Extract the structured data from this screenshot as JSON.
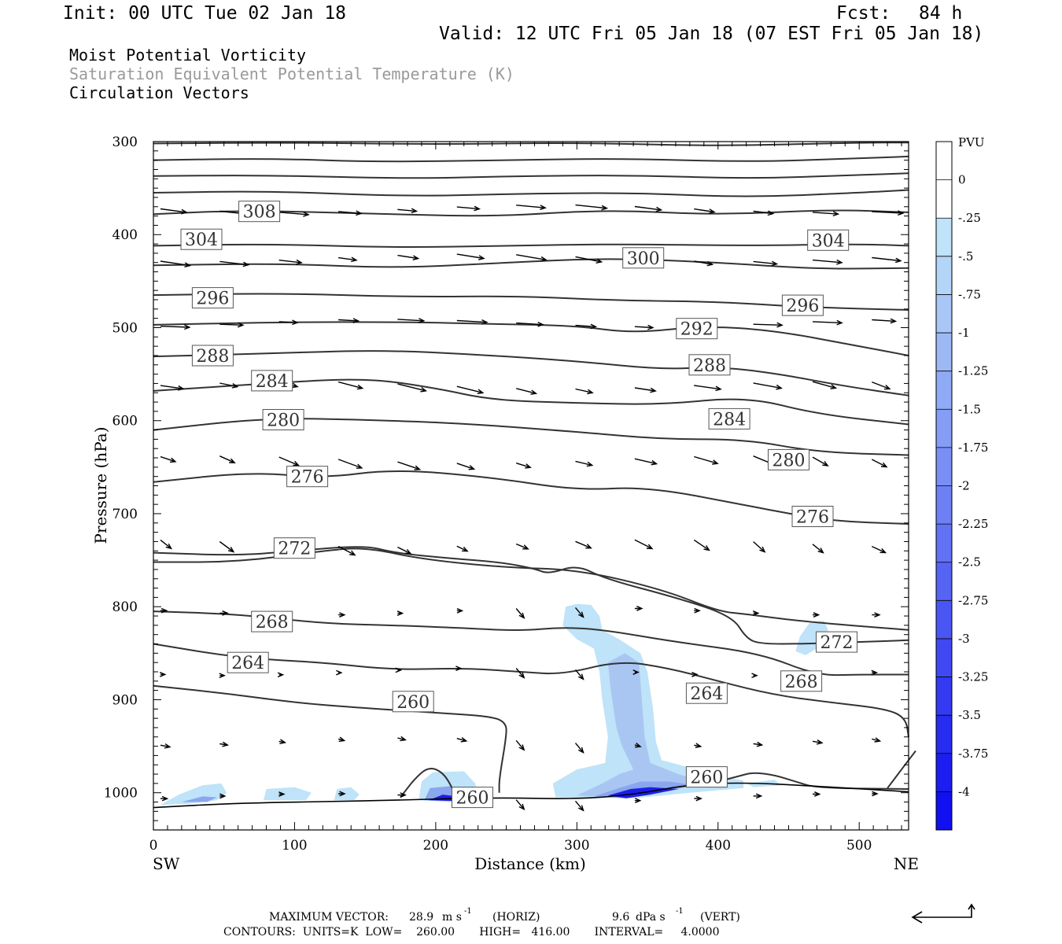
{
  "header": {
    "init": "Init: 00 UTC Tue 02 Jan 18",
    "fcst_label": "Fcst:",
    "fcst_value": "84 h",
    "valid": "Valid: 12 UTC Fri 05 Jan 18 (07 EST Fri 05 Jan 18)"
  },
  "fields": [
    "Moist Potential Vorticity",
    "Saturation Equivalent Potential Temperature (K)",
    "Circulation Vectors"
  ],
  "colors": {
    "field_highlight": "#9a9a9a",
    "contour": "#333333",
    "fill_light": "#bfe3f8",
    "fill_mid": "#8aa6ee",
    "fill_dark": "#1d1de8"
  },
  "chart_data": {
    "type": "cross-section contour",
    "title": "Moist Potential Vorticity / Saturation Equivalent Potential Temperature (K) / Circulation Vectors",
    "xlabel": "Distance (km)",
    "ylabel": "Pressure (hPa)",
    "xlim": [
      0,
      535
    ],
    "ylim": [
      1040,
      300
    ],
    "x_ticks": [
      "0",
      "100",
      "200",
      "300",
      "400",
      "500"
    ],
    "y_ticks": [
      "300",
      "400",
      "500",
      "600",
      "700",
      "800",
      "900",
      "1000"
    ],
    "x_end_left": "SW",
    "x_end_right": "NE",
    "contour_labels": [
      {
        "text": "308",
        "x": 75,
        "p": 375
      },
      {
        "text": "304",
        "x": 34,
        "p": 405
      },
      {
        "text": "304",
        "x": 478,
        "p": 406
      },
      {
        "text": "300",
        "x": 347,
        "p": 425
      },
      {
        "text": "296",
        "x": 42,
        "p": 468
      },
      {
        "text": "296",
        "x": 460,
        "p": 476
      },
      {
        "text": "292",
        "x": 385,
        "p": 501
      },
      {
        "text": "288",
        "x": 42,
        "p": 530
      },
      {
        "text": "288",
        "x": 394,
        "p": 540
      },
      {
        "text": "284",
        "x": 84,
        "p": 557
      },
      {
        "text": "284",
        "x": 408,
        "p": 598
      },
      {
        "text": "280",
        "x": 92,
        "p": 599
      },
      {
        "text": "280",
        "x": 450,
        "p": 642
      },
      {
        "text": "276",
        "x": 109,
        "p": 660
      },
      {
        "text": "276",
        "x": 467,
        "p": 703
      },
      {
        "text": "272",
        "x": 100,
        "p": 737
      },
      {
        "text": "272",
        "x": 484,
        "p": 838
      },
      {
        "text": "268",
        "x": 84,
        "p": 816
      },
      {
        "text": "268",
        "x": 459,
        "p": 880
      },
      {
        "text": "264",
        "x": 67,
        "p": 860
      },
      {
        "text": "264",
        "x": 392,
        "p": 893
      },
      {
        "text": "260",
        "x": 184,
        "p": 902
      },
      {
        "text": "260",
        "x": 392,
        "p": 983
      },
      {
        "text": "260",
        "x": 226,
        "p": 1005
      }
    ],
    "contour_levels_K": [
      260,
      264,
      268,
      272,
      276,
      280,
      284,
      288,
      292,
      296,
      300,
      304,
      308,
      312,
      316,
      320,
      324
    ],
    "colorbar": {
      "unit": "PVU",
      "labels": [
        "0",
        "-.25",
        "-.5",
        "-.75",
        "-1",
        "-1.25",
        "-1.5",
        "-1.75",
        "-2",
        "-2.25",
        "-2.5",
        "-2.75",
        "-3",
        "-3.25",
        "-3.5",
        "-3.75",
        "-4"
      ],
      "levels": [
        0.25,
        0,
        -0.25,
        -0.5,
        -0.75,
        -1,
        -1.25,
        -1.5,
        -1.75,
        -2,
        -2.25,
        -2.5,
        -2.75,
        -3,
        -3.25,
        -3.5,
        -3.75,
        -4,
        -4.25
      ]
    },
    "pv_regions": [
      {
        "level": -0.25,
        "desc": "light blue column near 310-360 km, 800-1005 hPa"
      },
      {
        "level": -3.0,
        "desc": "deep blue core near 330-370 km at 995 hPa"
      },
      {
        "level": -0.5,
        "desc": "patches near surface at 20-50, 80-110, 130-145, 190-225 km"
      },
      {
        "level": -0.25,
        "desc": "patch near 460-475 km, 815-850 hPa"
      }
    ],
    "terrain_pressure": [
      {
        "x": 0,
        "p": 1016
      },
      {
        "x": 60,
        "p": 1011
      },
      {
        "x": 150,
        "p": 1009
      },
      {
        "x": 240,
        "p": 1005
      },
      {
        "x": 300,
        "p": 1007
      },
      {
        "x": 340,
        "p": 1002
      },
      {
        "x": 380,
        "p": 991
      },
      {
        "x": 420,
        "p": 989
      },
      {
        "x": 470,
        "p": 993
      },
      {
        "x": 535,
        "p": 999
      }
    ]
  },
  "footer": {
    "max_vector_label": "MAXIMUM VECTOR:",
    "horiz_value": "28.9",
    "horiz_unit": "m s",
    "horiz_tag": "(HORIZ)",
    "vert_value": "9.6",
    "vert_unit": "dPa s",
    "vert_tag": "(VERT)",
    "exponent": "-1",
    "contours_line": "CONTOURS:  UNITS=K  LOW=    260.00       HIGH=   416.00       INTERVAL=     4.0000"
  }
}
